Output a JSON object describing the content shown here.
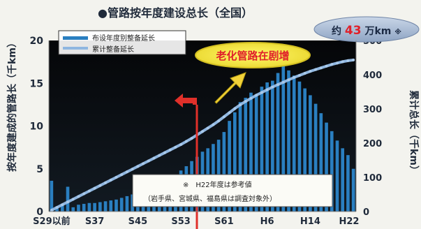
{
  "chart_data": {
    "type": "bar",
    "title": "●管路按年度建设总长（全国）",
    "ylabel_left": "按年度建成的管路长（千km）",
    "ylabel_right": "累计总长（千km）",
    "ylim_left": [
      0,
      20
    ],
    "ylim_right": [
      0,
      500
    ],
    "yticks_left": [
      "0",
      "5",
      "10",
      "15",
      "20"
    ],
    "yticks_right": [
      "0",
      "100",
      "200",
      "300",
      "400",
      "500"
    ],
    "xtick_labels": [
      "S29以前",
      "S37",
      "S45",
      "S53",
      "S61",
      "H6",
      "H14",
      "H22"
    ],
    "xtick_index": [
      0,
      8,
      16,
      24,
      32,
      40,
      48,
      56
    ],
    "grid": false,
    "legend_position": "top-left",
    "series": [
      {
        "name": "布设年度别整备延长",
        "type": "bar",
        "axis": "left",
        "color": "#2a7fc0",
        "values": [
          3.6,
          0.6,
          0.9,
          2.9,
          0.5,
          0.8,
          0.9,
          1.0,
          1.0,
          1.1,
          1.2,
          1.3,
          1.4,
          1.6,
          1.8,
          2.0,
          2.2,
          2.4,
          2.7,
          3.0,
          3.3,
          3.6,
          3.9,
          4.3,
          4.8,
          5.3,
          5.9,
          6.4,
          7.0,
          7.4,
          7.9,
          8.4,
          9.3,
          10.6,
          11.6,
          12.8,
          13.3,
          13.9,
          13.7,
          14.6,
          15.1,
          15.3,
          16.2,
          17.0,
          16.5,
          15.9,
          15.2,
          14.4,
          13.6,
          12.6,
          11.5,
          10.4,
          9.4,
          8.3,
          7.4,
          6.6,
          5.0
        ]
      },
      {
        "name": "累计整备延长",
        "type": "line",
        "axis": "right",
        "color": "#8fb6e0",
        "values": [
          4,
          12,
          20,
          28,
          36,
          44,
          52,
          60,
          68,
          76,
          84,
          92,
          100,
          108,
          116,
          124,
          132,
          140,
          148,
          156,
          164,
          172,
          180,
          188,
          196,
          205,
          214,
          224,
          234,
          244,
          254,
          265,
          277,
          289,
          301,
          312,
          322,
          331,
          340,
          348,
          356,
          364,
          371,
          378,
          385,
          392,
          398,
          404,
          410,
          415,
          420,
          425,
          430,
          434,
          438,
          441,
          443
        ]
      }
    ],
    "annotations": {
      "total": {
        "prefix": "约",
        "value": "43",
        "unit": "万km",
        "mark": "※"
      },
      "aging": "老化管路在剧增",
      "note_line1": "※　H22年度は参考値",
      "note_line2": "（岩手県、宮城県、福島県は調査対象外）"
    }
  }
}
